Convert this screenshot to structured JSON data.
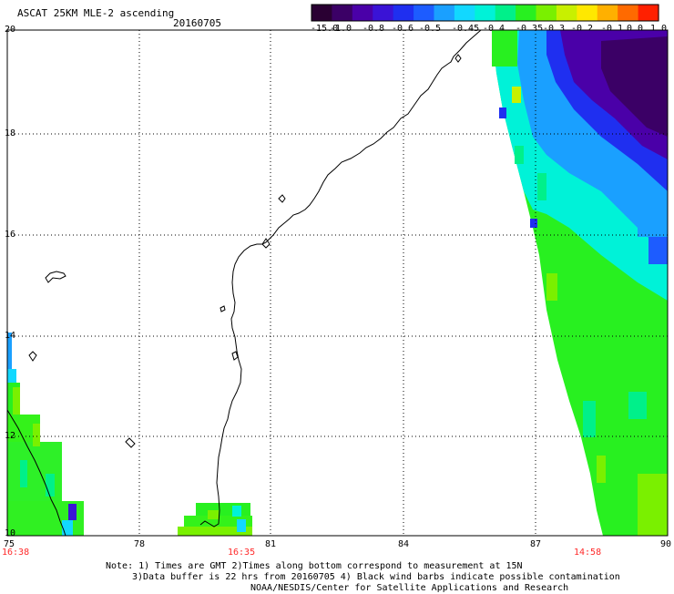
{
  "header": {
    "title": "ASCAT 25KM MLE-2 ascending",
    "date": "20160705"
  },
  "colorbar": {
    "colors": [
      "#2a0033",
      "#3b0066",
      "#4a00a8",
      "#3a13d6",
      "#1f2ff0",
      "#1d5cff",
      "#1aa0ff",
      "#12d8ff",
      "#00f2d8",
      "#00f08a",
      "#28f020",
      "#7af000",
      "#c8f000",
      "#ffe800",
      "#ffb000",
      "#ff6a00",
      "#ff2000"
    ],
    "tick_labels": [
      "-15.0",
      "-1.0",
      "-0.8",
      "-0.6",
      "-0.5",
      "-0.45",
      "-0.4",
      "-0.35",
      "-0.3",
      "-0.2",
      "-0.1",
      "0.0",
      "1.0"
    ]
  },
  "axes": {
    "x_ticks": [
      "75",
      "78",
      "81",
      "84",
      "87",
      "90"
    ],
    "y_ticks": [
      "20",
      "18",
      "16",
      "14",
      "12",
      "10"
    ]
  },
  "swath_times": [
    "16:38",
    "16:35",
    "14:58"
  ],
  "notes": [
    "Note: 1) Times are GMT 2)Times along bottom correspond to measurement at 15N",
    "3)Data buffer is 22 hrs from 20160705 4) Black wind barbs indicate possible contamination",
    "NOAA/NESDIS/Center for Satellite Applications and Research"
  ]
}
